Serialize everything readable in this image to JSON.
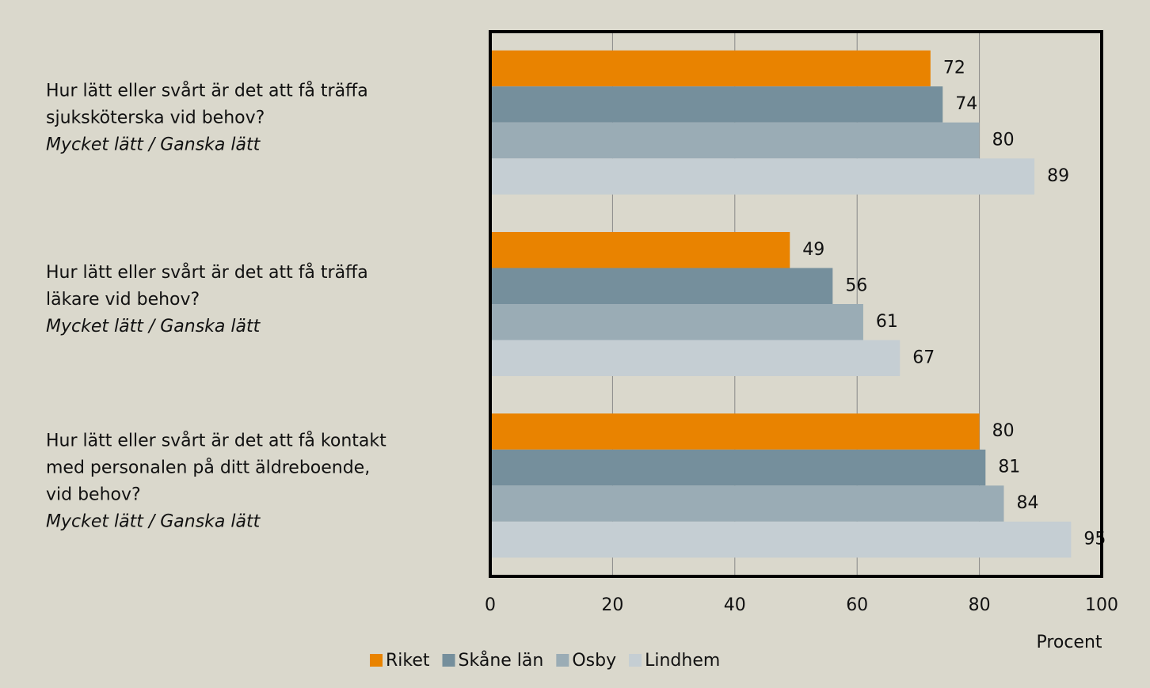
{
  "chart_data": {
    "type": "hbar",
    "categories": [
      [
        "Hur lätt eller svårt är det att få träffa",
        "sjuksköterska vid behov?",
        "Mycket lätt / Ganska lätt"
      ],
      [
        "Hur lätt eller svårt är det att få träffa",
        "läkare vid behov?",
        "Mycket lätt / Ganska lätt"
      ],
      [
        "Hur lätt eller svårt är det att få kontakt",
        "med personalen på ditt äldreboende,",
        "vid behov?",
        "Mycket lätt / Ganska lätt"
      ]
    ],
    "series": [
      {
        "name": "Riket",
        "color": "#e98300",
        "values": [
          72,
          49,
          80
        ]
      },
      {
        "name": "Skåne län",
        "color": "#758f9c",
        "values": [
          74,
          56,
          81
        ]
      },
      {
        "name": "Osby",
        "color": "#9aacb5",
        "values": [
          80,
          61,
          84
        ]
      },
      {
        "name": "Lindhem",
        "color": "#c5ced3",
        "values": [
          89,
          67,
          95
        ]
      }
    ],
    "xlabel": "Procent",
    "xlim": [
      0,
      100
    ],
    "xticks": [
      0,
      20,
      40,
      60,
      80,
      100
    ],
    "grid": true,
    "legend": "bottom"
  }
}
